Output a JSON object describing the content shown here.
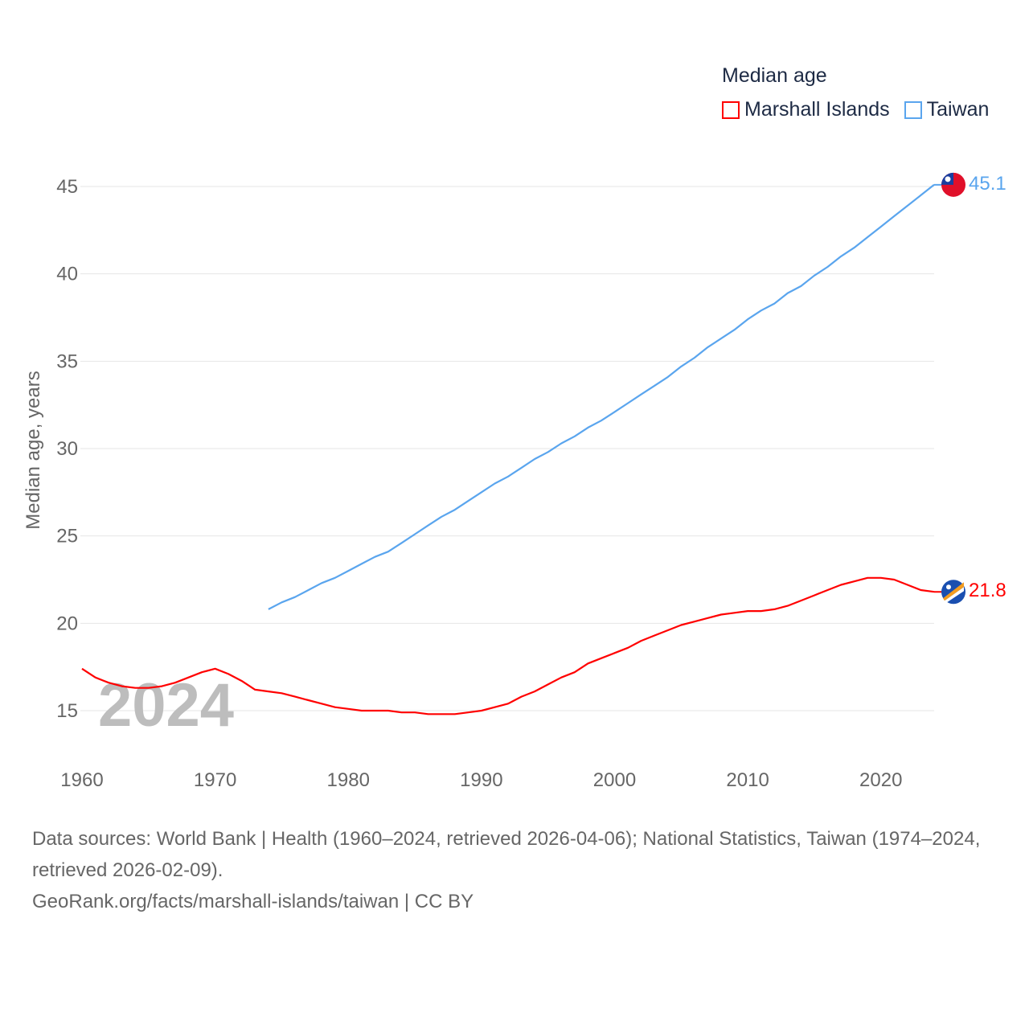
{
  "chart_data": {
    "type": "line",
    "title": "Median age",
    "xlabel": "",
    "ylabel": "Median age, years",
    "xlim": [
      1960,
      2024
    ],
    "ylim": [
      12.5,
      47
    ],
    "yticks": [
      15,
      20,
      25,
      30,
      35,
      40,
      45
    ],
    "xticks": [
      1960,
      1970,
      1980,
      1990,
      2000,
      2010,
      2020
    ],
    "grid": true,
    "legend_placement": "top-right",
    "year_watermark": "2024",
    "series": [
      {
        "name": "Marshall Islands",
        "color": "#ff0000",
        "end_label": "21.8",
        "start_year": 1960,
        "values": [
          17.4,
          16.9,
          16.6,
          16.4,
          16.3,
          16.3,
          16.4,
          16.6,
          16.9,
          17.2,
          17.4,
          17.1,
          16.7,
          16.2,
          16.1,
          16.0,
          15.8,
          15.6,
          15.4,
          15.2,
          15.1,
          15.0,
          15.0,
          15.0,
          14.9,
          14.9,
          14.8,
          14.8,
          14.8,
          14.9,
          15.0,
          15.2,
          15.4,
          15.8,
          16.1,
          16.5,
          16.9,
          17.2,
          17.7,
          18.0,
          18.3,
          18.6,
          19.0,
          19.3,
          19.6,
          19.9,
          20.1,
          20.3,
          20.5,
          20.6,
          20.7,
          20.7,
          20.8,
          21.0,
          21.3,
          21.6,
          21.9,
          22.2,
          22.4,
          22.6,
          22.6,
          22.5,
          22.2,
          21.9,
          21.8
        ]
      },
      {
        "name": "Taiwan",
        "color": "#5aa5ee",
        "end_label": "45.1",
        "start_year": 1974,
        "values": [
          20.8,
          21.2,
          21.5,
          21.9,
          22.3,
          22.6,
          23.0,
          23.4,
          23.8,
          24.1,
          24.6,
          25.1,
          25.6,
          26.1,
          26.5,
          27.0,
          27.5,
          28.0,
          28.4,
          28.9,
          29.4,
          29.8,
          30.3,
          30.7,
          31.2,
          31.6,
          32.1,
          32.6,
          33.1,
          33.6,
          34.1,
          34.7,
          35.2,
          35.8,
          36.3,
          36.8,
          37.4,
          37.9,
          38.3,
          38.9,
          39.3,
          39.9,
          40.4,
          41.0,
          41.5,
          42.1,
          42.7,
          43.3,
          43.9,
          44.5,
          45.1
        ]
      }
    ]
  },
  "footer": {
    "sources": "Data sources: World Bank | Health (1960–2024, retrieved 2026-04-06); National Statistics, Taiwan (1974–2024, retrieved 2026-02-09).",
    "credit": "GeoRank.org/facts/marshall-islands/taiwan | CC BY"
  }
}
